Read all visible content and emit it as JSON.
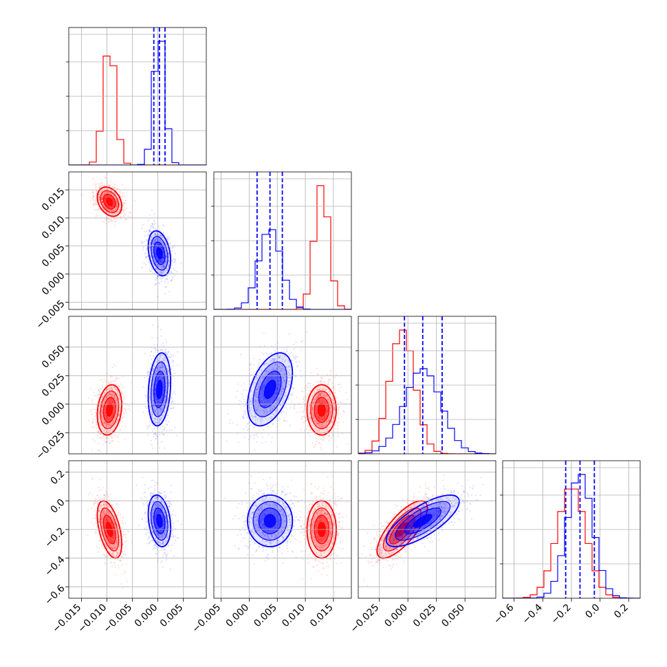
{
  "colors": {
    "series_a": "#ff0000",
    "series_b": "#0000ff",
    "grid": "#b0b0b0"
  },
  "chart_data": {
    "type": "corner",
    "grid": true,
    "parameters": [
      {
        "range": [
          -0.0175,
          0.0095
        ],
        "ticks": [
          -0.015,
          -0.01,
          -0.005,
          0.0,
          0.005
        ],
        "tick_labels": [
          "−0.015",
          "−0.010",
          "−0.005",
          "0.000",
          "0.005"
        ]
      },
      {
        "range": [
          -0.0063,
          0.0182
        ],
        "ticks": [
          -0.005,
          0.0,
          0.005,
          0.01,
          0.015
        ],
        "tick_labels": [
          "−0.005",
          "0.000",
          "0.005",
          "0.010",
          "0.015"
        ]
      },
      {
        "range": [
          -0.0435,
          0.077
        ],
        "ticks": [
          -0.025,
          0.0,
          0.025,
          0.05
        ],
        "tick_labels": [
          "−0.025",
          "0.000",
          "0.025",
          "0.050"
        ]
      },
      {
        "range": [
          -0.68,
          0.28
        ],
        "ticks": [
          -0.6,
          -0.4,
          -0.2,
          0.0,
          0.2
        ],
        "tick_labels": [
          "−0.6",
          "−0.4",
          "−0.2",
          "0.0",
          "0.2"
        ]
      }
    ],
    "series": [
      {
        "color": "#ff0000",
        "mean": [
          -0.0095,
          0.0129,
          -0.005,
          -0.2
        ],
        "std": [
          0.0012,
          0.0013,
          0.011,
          0.1
        ],
        "correlations": {
          "0-1": -0.3,
          "0-2": 0.2,
          "0-3": -0.5,
          "1-2": 0.0,
          "1-3": 0.0,
          "2-3": 0.75
        },
        "show_quantile_lines": false
      },
      {
        "color": "#0000ff",
        "mean": [
          0.0003,
          0.0037,
          0.013,
          -0.14
        ],
        "std": [
          0.0011,
          0.002,
          0.016,
          0.09
        ],
        "correlations": {
          "0-1": -0.3,
          "0-2": 0.2,
          "0-3": -0.25,
          "1-2": 0.45,
          "1-3": 0.0,
          "2-3": 0.75
        },
        "show_quantile_lines": true,
        "quantiles": [
          [
            -0.0008,
            0.0003,
            0.0014
          ],
          [
            0.0014,
            0.0037,
            0.0059
          ],
          [
            -0.003,
            0.013,
            0.03
          ],
          [
            -0.24,
            -0.14,
            -0.04
          ]
        ]
      }
    ]
  }
}
